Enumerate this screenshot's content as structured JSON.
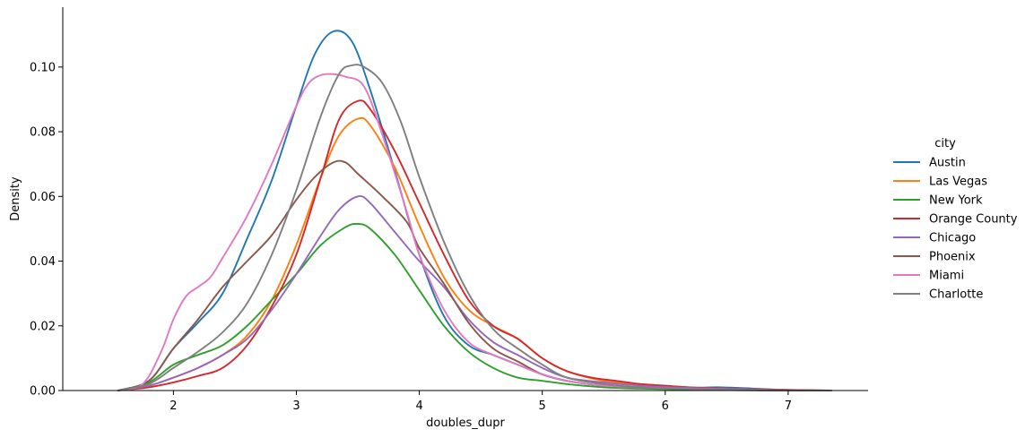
{
  "chart_data": {
    "type": "line",
    "title": "",
    "xlabel": "doubles_dupr",
    "ylabel": "Density",
    "xlim": [
      1.1,
      7.65
    ],
    "ylim": [
      0,
      0.1185
    ],
    "xticks": [
      2,
      3,
      4,
      5,
      6,
      7
    ],
    "yticks": [
      0.0,
      0.02,
      0.04,
      0.06,
      0.08,
      0.1
    ],
    "ytick_labels": [
      "0.00",
      "0.02",
      "0.04",
      "0.06",
      "0.08",
      "0.10"
    ],
    "grid": false,
    "legend": {
      "title": "city",
      "placement": "right"
    },
    "series": [
      {
        "name": "Austin",
        "color": "#1f77b4",
        "x": [
          1.55,
          1.8,
          2.0,
          2.2,
          2.4,
          2.6,
          2.8,
          3.0,
          3.15,
          3.3,
          3.45,
          3.6,
          3.8,
          4.0,
          4.2,
          4.4,
          4.6,
          4.8,
          5.0,
          5.2,
          5.5,
          5.8,
          6.1,
          6.3,
          6.45,
          6.6,
          7.0,
          7.35
        ],
        "y": [
          0.0,
          0.003,
          0.013,
          0.021,
          0.03,
          0.047,
          0.065,
          0.088,
          0.104,
          0.111,
          0.108,
          0.093,
          0.068,
          0.042,
          0.023,
          0.014,
          0.011,
          0.008,
          0.005,
          0.003,
          0.0015,
          0.001,
          0.0007,
          0.0009,
          0.001,
          0.0008,
          0.0002,
          0.0
        ]
      },
      {
        "name": "Las Vegas",
        "color": "#ff7f0e",
        "x": [
          1.55,
          1.8,
          2.0,
          2.2,
          2.4,
          2.6,
          2.8,
          3.0,
          3.2,
          3.35,
          3.5,
          3.6,
          3.8,
          4.0,
          4.2,
          4.4,
          4.6,
          4.8,
          5.0,
          5.2,
          5.5,
          5.8,
          6.2,
          6.6,
          7.0,
          7.35
        ],
        "y": [
          0.0,
          0.0015,
          0.004,
          0.007,
          0.011,
          0.017,
          0.028,
          0.045,
          0.066,
          0.079,
          0.084,
          0.082,
          0.069,
          0.051,
          0.035,
          0.025,
          0.02,
          0.016,
          0.01,
          0.006,
          0.003,
          0.002,
          0.001,
          0.0005,
          0.0002,
          0.0
        ]
      },
      {
        "name": "New York",
        "color": "#2ca02c",
        "x": [
          1.55,
          1.8,
          2.0,
          2.2,
          2.4,
          2.6,
          2.8,
          3.0,
          3.2,
          3.4,
          3.5,
          3.6,
          3.8,
          4.0,
          4.2,
          4.4,
          4.6,
          4.8,
          5.0,
          5.2,
          5.5,
          5.8,
          6.2,
          6.6,
          7.0,
          7.35
        ],
        "y": [
          0.0,
          0.0025,
          0.008,
          0.011,
          0.014,
          0.02,
          0.028,
          0.036,
          0.045,
          0.0505,
          0.0515,
          0.05,
          0.042,
          0.031,
          0.02,
          0.012,
          0.007,
          0.004,
          0.003,
          0.002,
          0.001,
          0.0006,
          0.0003,
          0.0001,
          0.0,
          0.0
        ]
      },
      {
        "name": "Orange County",
        "color": "#d62728",
        "x": [
          1.55,
          1.8,
          2.0,
          2.2,
          2.4,
          2.6,
          2.8,
          3.0,
          3.2,
          3.35,
          3.5,
          3.6,
          3.8,
          4.0,
          4.2,
          4.4,
          4.6,
          4.8,
          5.0,
          5.2,
          5.4,
          5.6,
          5.8,
          6.0,
          6.2,
          6.6,
          7.0,
          7.35
        ],
        "y": [
          0.0,
          0.001,
          0.0025,
          0.0045,
          0.007,
          0.014,
          0.026,
          0.042,
          0.066,
          0.084,
          0.0895,
          0.087,
          0.074,
          0.058,
          0.042,
          0.028,
          0.02,
          0.016,
          0.01,
          0.006,
          0.004,
          0.003,
          0.002,
          0.0015,
          0.001,
          0.0005,
          0.0002,
          0.0
        ]
      },
      {
        "name": "Chicago",
        "color": "#9467bd",
        "x": [
          1.55,
          1.8,
          2.0,
          2.2,
          2.4,
          2.6,
          2.8,
          3.0,
          3.2,
          3.35,
          3.5,
          3.6,
          3.8,
          4.0,
          4.2,
          4.4,
          4.6,
          4.8,
          5.0,
          5.2,
          5.5,
          5.8,
          6.2,
          6.6,
          7.0,
          7.35
        ],
        "y": [
          0.0,
          0.0015,
          0.004,
          0.007,
          0.011,
          0.016,
          0.025,
          0.036,
          0.048,
          0.056,
          0.06,
          0.058,
          0.049,
          0.04,
          0.032,
          0.022,
          0.015,
          0.011,
          0.007,
          0.004,
          0.0025,
          0.0015,
          0.0008,
          0.0004,
          0.0001,
          0.0
        ]
      },
      {
        "name": "Phoenix",
        "color": "#8c564b",
        "x": [
          1.55,
          1.8,
          2.0,
          2.2,
          2.4,
          2.6,
          2.8,
          3.0,
          3.15,
          3.3,
          3.4,
          3.5,
          3.7,
          3.9,
          4.0,
          4.2,
          4.4,
          4.6,
          4.8,
          5.0,
          5.2,
          5.5,
          5.8,
          6.2,
          6.6,
          7.0,
          7.35
        ],
        "y": [
          0.0,
          0.003,
          0.013,
          0.022,
          0.032,
          0.04,
          0.048,
          0.059,
          0.066,
          0.0705,
          0.0705,
          0.067,
          0.06,
          0.052,
          0.044,
          0.033,
          0.021,
          0.013,
          0.009,
          0.005,
          0.003,
          0.0015,
          0.001,
          0.0005,
          0.0002,
          0.0,
          0.0
        ]
      },
      {
        "name": "Miami",
        "color": "#e377c2",
        "x": [
          1.55,
          1.75,
          1.9,
          2.0,
          2.1,
          2.2,
          2.3,
          2.4,
          2.6,
          2.8,
          3.0,
          3.1,
          3.2,
          3.3,
          3.4,
          3.55,
          3.7,
          3.9,
          4.0,
          4.2,
          4.4,
          4.6,
          4.8,
          5.0,
          5.2,
          5.5,
          5.8,
          6.2,
          6.6,
          7.0,
          7.35
        ],
        "y": [
          0.0,
          0.002,
          0.012,
          0.022,
          0.029,
          0.032,
          0.035,
          0.041,
          0.054,
          0.07,
          0.088,
          0.095,
          0.0975,
          0.0978,
          0.097,
          0.094,
          0.079,
          0.055,
          0.042,
          0.025,
          0.015,
          0.011,
          0.008,
          0.005,
          0.003,
          0.0015,
          0.001,
          0.0005,
          0.0002,
          0.0,
          0.0
        ]
      },
      {
        "name": "Charlotte",
        "color": "#7f7f7f",
        "x": [
          1.55,
          1.8,
          2.0,
          2.2,
          2.4,
          2.6,
          2.8,
          3.0,
          3.2,
          3.35,
          3.45,
          3.55,
          3.7,
          3.85,
          4.0,
          4.2,
          4.4,
          4.6,
          4.8,
          5.0,
          5.2,
          5.5,
          5.8,
          6.2,
          6.6,
          7.0,
          7.35
        ],
        "y": [
          0.0,
          0.002,
          0.007,
          0.012,
          0.018,
          0.027,
          0.042,
          0.062,
          0.085,
          0.098,
          0.1005,
          0.1,
          0.095,
          0.083,
          0.066,
          0.046,
          0.03,
          0.019,
          0.013,
          0.008,
          0.004,
          0.002,
          0.001,
          0.0005,
          0.0002,
          0.0,
          0.0
        ]
      }
    ]
  }
}
